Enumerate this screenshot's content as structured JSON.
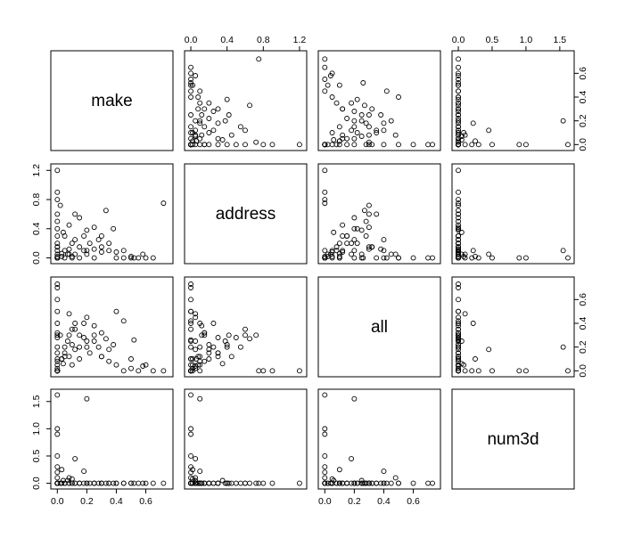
{
  "chart_data": {
    "type": "scatter",
    "title": "",
    "variables": [
      "make",
      "address",
      "all",
      "num3d"
    ],
    "axes": {
      "make": {
        "range": [
          -0.02,
          0.76
        ],
        "ticks": [
          0.0,
          0.2,
          0.4,
          0.6
        ],
        "tick_labels": [
          "0.0",
          "0.2",
          "0.4",
          "0.6"
        ]
      },
      "address": {
        "range": [
          -0.03,
          1.24
        ],
        "ticks": [
          0.0,
          0.4,
          0.8,
          1.2
        ],
        "tick_labels": [
          "0.0",
          "0.4",
          "0.8",
          "1.2"
        ]
      },
      "all": {
        "range": [
          -0.02,
          0.76
        ],
        "ticks": [
          0.0,
          0.2,
          0.4,
          0.6
        ],
        "tick_labels": [
          "0.0",
          "0.2",
          "0.4",
          "0.6"
        ]
      },
      "num3d": {
        "range": [
          -0.04,
          1.66
        ],
        "ticks": [
          0.0,
          0.5,
          1.0,
          1.5
        ],
        "tick_labels": [
          "0.0",
          "0.5",
          "1.0",
          "1.5"
        ]
      }
    },
    "observations": [
      [
        0,
        0,
        0,
        0
      ],
      [
        0,
        0.02,
        0,
        0
      ],
      [
        0,
        0.05,
        0.02,
        0
      ],
      [
        0,
        0.1,
        0.05,
        0
      ],
      [
        0,
        0.15,
        0.08,
        0
      ],
      [
        0,
        0.2,
        0.1,
        0
      ],
      [
        0,
        0.3,
        0.15,
        0
      ],
      [
        0,
        0.4,
        0.2,
        0
      ],
      [
        0,
        0.6,
        0.3,
        0
      ],
      [
        0,
        0.8,
        0,
        0
      ],
      [
        0,
        0.9,
        0,
        0
      ],
      [
        0,
        1.2,
        0,
        0
      ],
      [
        0,
        0,
        0.5,
        0
      ],
      [
        0,
        0,
        0.6,
        0
      ],
      [
        0,
        0,
        0.7,
        0
      ],
      [
        0,
        0,
        0.73,
        0
      ],
      [
        0,
        0,
        0,
        0.1
      ],
      [
        0,
        0,
        0,
        0.2
      ],
      [
        0,
        0,
        0,
        0.3
      ],
      [
        0,
        0,
        0,
        0.5
      ],
      [
        0,
        0,
        0,
        0.9
      ],
      [
        0,
        0,
        0,
        1.0
      ],
      [
        0,
        0,
        0,
        1.62
      ],
      [
        0,
        0,
        0.4,
        0
      ],
      [
        0.03,
        0.06,
        0.1,
        0
      ],
      [
        0.05,
        0.1,
        0.12,
        0
      ],
      [
        0.05,
        0,
        0.2,
        0
      ],
      [
        0.07,
        0.05,
        0.25,
        0.05
      ],
      [
        0.08,
        0.12,
        0.3,
        0
      ],
      [
        0.1,
        0.2,
        0.22,
        0
      ],
      [
        0.1,
        0,
        0.35,
        0
      ],
      [
        0.12,
        0.25,
        0.4,
        0
      ],
      [
        0.12,
        0.05,
        0.18,
        0.45
      ],
      [
        0.15,
        0.15,
        0.3,
        0
      ],
      [
        0.15,
        0,
        0.1,
        0
      ],
      [
        0.18,
        0.3,
        0.28,
        0
      ],
      [
        0.2,
        0.1,
        0.2,
        1.55
      ],
      [
        0.2,
        0.05,
        0.45,
        0
      ],
      [
        0.22,
        0.2,
        0.15,
        0
      ],
      [
        0.25,
        0.12,
        0.38,
        0
      ],
      [
        0.25,
        0,
        0.25,
        0
      ],
      [
        0.28,
        0.25,
        0.2,
        0
      ],
      [
        0.3,
        0.15,
        0.32,
        0
      ],
      [
        0.3,
        0.08,
        0.12,
        0
      ],
      [
        0.33,
        0.65,
        0.27,
        0
      ],
      [
        0.35,
        0.2,
        0.18,
        0
      ],
      [
        0.38,
        0.4,
        0.22,
        0
      ],
      [
        0.4,
        0,
        0.5,
        0
      ],
      [
        0.45,
        0,
        0.42,
        0
      ],
      [
        0.5,
        0,
        0.1,
        0
      ],
      [
        0.52,
        0,
        0.26,
        0
      ],
      [
        0.55,
        0,
        0,
        0
      ],
      [
        0.6,
        0,
        0.05,
        0
      ],
      [
        0.65,
        0,
        0,
        0
      ],
      [
        0.72,
        0.75,
        0,
        0
      ],
      [
        0.1,
        0.02,
        0.05,
        0.08
      ],
      [
        0.05,
        0.3,
        0.15,
        0
      ],
      [
        0.08,
        0.45,
        0.12,
        0
      ],
      [
        0.15,
        0.55,
        0.2,
        0
      ],
      [
        0.2,
        0.38,
        0.25,
        0
      ],
      [
        0.02,
        0.72,
        0.3,
        0
      ],
      [
        0.12,
        0.6,
        0.35,
        0
      ],
      [
        0.25,
        0.42,
        0.3,
        0
      ],
      [
        0.0,
        0.15,
        0.32,
        0
      ],
      [
        0.18,
        0.1,
        0.4,
        0.22
      ],
      [
        0.08,
        0.05,
        0.48,
        0.1
      ],
      [
        0.3,
        0.3,
        0.12,
        0
      ],
      [
        0.35,
        0.1,
        0.08,
        0
      ],
      [
        0.4,
        0.08,
        0.05,
        0
      ],
      [
        0.45,
        0.1,
        0,
        0
      ],
      [
        0.58,
        0.05,
        0.04,
        0
      ],
      [
        0.5,
        0.02,
        0.02,
        0
      ],
      [
        0.04,
        0.35,
        0.06,
        0.05
      ],
      [
        0.03,
        0.02,
        0.1,
        0.25
      ],
      [
        0.0,
        0.5,
        0.28,
        0
      ]
    ]
  }
}
